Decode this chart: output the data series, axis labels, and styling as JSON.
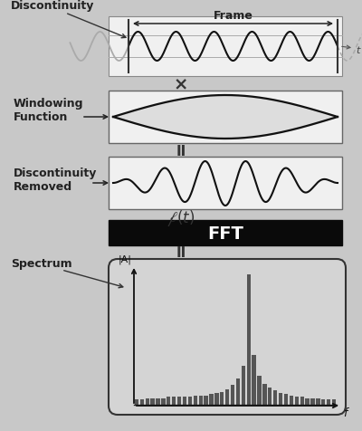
{
  "bg_color": "#c8c8c8",
  "fig_width": 4.0,
  "fig_height": 4.77,
  "dpi": 100,
  "labels": {
    "discontinuity": "Discontinuity",
    "frame": "Frame",
    "windowing": "Windowing\nFunction",
    "disc_removed": "Discontinuity\nRemoved",
    "spectrum": "Spectrum",
    "fft": "FFT",
    "t_axis": "t",
    "f_axis": "f",
    "iai": "|A|",
    "multiply": "×",
    "equals": "II"
  },
  "spectrum_bars": [
    0.04,
    0.04,
    0.05,
    0.05,
    0.05,
    0.05,
    0.06,
    0.06,
    0.06,
    0.06,
    0.06,
    0.07,
    0.07,
    0.07,
    0.08,
    0.09,
    0.1,
    0.12,
    0.15,
    0.2,
    0.3,
    1.0,
    0.38,
    0.22,
    0.16,
    0.13,
    0.11,
    0.09,
    0.08,
    0.07,
    0.06,
    0.06,
    0.05,
    0.05,
    0.05,
    0.04,
    0.04,
    0.04
  ]
}
